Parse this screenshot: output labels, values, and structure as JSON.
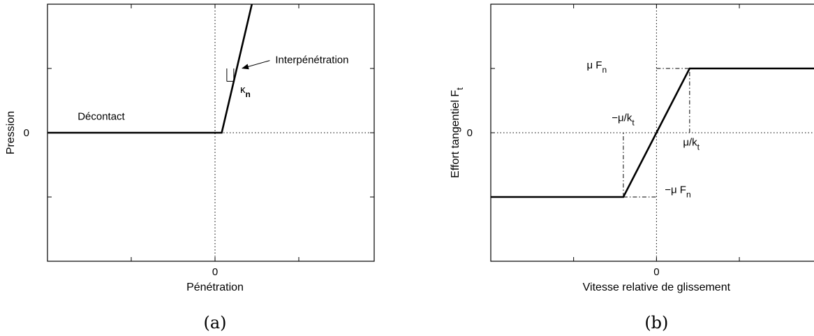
{
  "chart_data": [
    {
      "id": "a",
      "type": "line",
      "caption": "(a)",
      "xlabel": "Pénétration",
      "ylabel": "Pression",
      "xlim": [
        -1.0,
        0.95
      ],
      "ylim": [
        -2.0,
        2.0
      ],
      "x_ticks": [
        -0.5,
        0,
        0.5
      ],
      "y_ticks": [
        -1,
        0,
        1
      ],
      "x_tick_labels": [
        "",
        "0",
        ""
      ],
      "y_tick_labels": [
        "",
        "0",
        ""
      ],
      "grid": "dotted zero lines",
      "series": [
        {
          "x": [
            -1.0,
            0.04,
            0.22
          ],
          "y": [
            0,
            0,
            2.0
          ]
        }
      ],
      "annotations": [
        {
          "text": "Décontact",
          "x": -0.82,
          "y": 0.2,
          "anchor": "start"
        },
        {
          "text": "Interpénétration",
          "x": 0.36,
          "y": 1.08,
          "anchor": "start",
          "arrow_to": [
            0.15,
            1.0
          ]
        },
        {
          "text": "κ",
          "sub": "n",
          "x": 0.15,
          "y": 0.62,
          "anchor": "start"
        }
      ]
    },
    {
      "id": "b",
      "type": "line",
      "caption": "(b)",
      "xlabel": "Vitesse relative de glissement",
      "ylabel": "Effort tangentiel F",
      "ylabel_sub": "t",
      "xlim": [
        -1.0,
        0.98
      ],
      "ylim": [
        -2.0,
        2.0
      ],
      "x_ticks": [
        -0.5,
        0,
        0.5
      ],
      "y_ticks": [
        -1,
        0,
        1
      ],
      "x_tick_labels": [
        "",
        "0",
        ""
      ],
      "y_tick_labels": [
        "",
        "0",
        ""
      ],
      "grid": "dotted zero lines",
      "series": [
        {
          "x": [
            -1.0,
            -0.2,
            0.2,
            0.98
          ],
          "y": [
            -1,
            -1,
            1,
            1
          ]
        }
      ],
      "guides": [
        {
          "x": [
            -0.2,
            -0.2
          ],
          "y": [
            -1,
            0
          ]
        },
        {
          "x": [
            -0.2,
            0
          ],
          "y": [
            -1,
            -1
          ]
        },
        {
          "x": [
            0.2,
            0.2
          ],
          "y": [
            0,
            1
          ]
        },
        {
          "x": [
            0,
            0.2
          ],
          "y": [
            1,
            1
          ]
        }
      ],
      "annotations": [
        {
          "text": "μ F",
          "sub": "n",
          "x": -0.3,
          "y": 1.0,
          "anchor": "end"
        },
        {
          "text": "−μ/k",
          "sub": "t",
          "x": -0.27,
          "y": 0.18,
          "anchor": "start"
        },
        {
          "text": "μ/k",
          "sub": "t",
          "x": 0.16,
          "y": -0.2,
          "anchor": "start"
        },
        {
          "text": "−μ F",
          "sub": "n",
          "x": 0.05,
          "y": -0.94,
          "anchor": "start"
        }
      ]
    }
  ]
}
